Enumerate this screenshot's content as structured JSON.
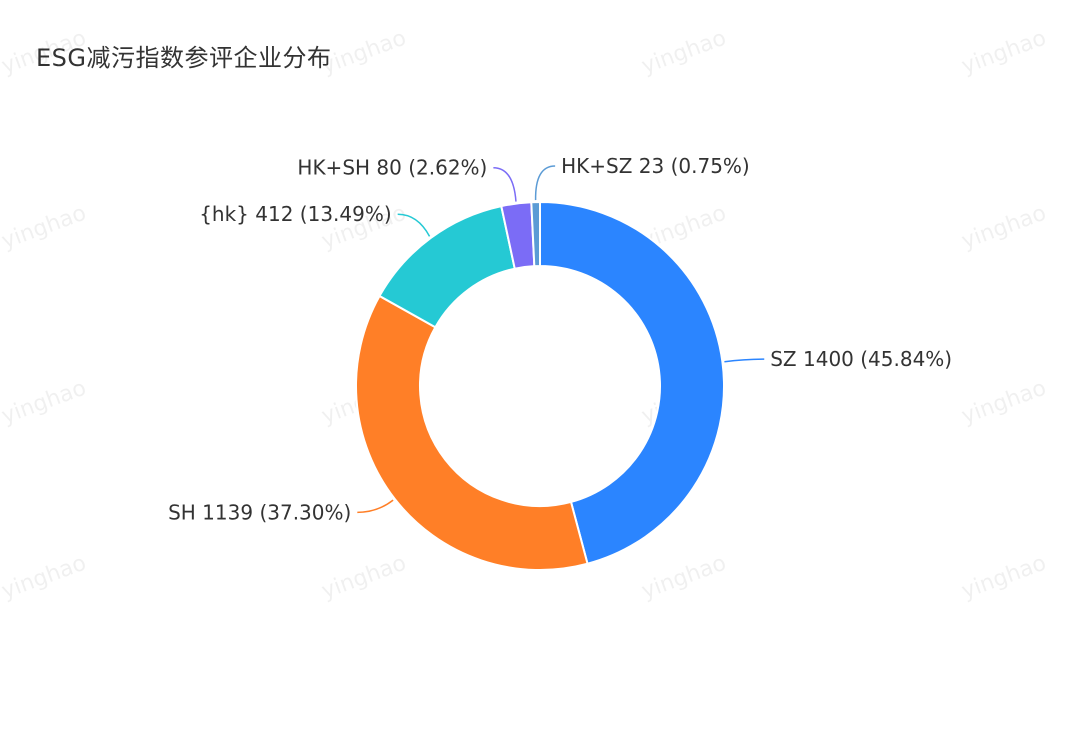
{
  "watermark_text": "yinghao",
  "chart_data": {
    "type": "pie",
    "variant": "donut",
    "title": "ESG减污指数参评企业分布",
    "slices": [
      {
        "name": "SZ",
        "value": 1400,
        "percent_label": "45.84%",
        "color": "#2b85ff"
      },
      {
        "name": "SH",
        "value": 1139,
        "percent_label": "37.30%",
        "color": "#ff7f27"
      },
      {
        "name": "{hk}",
        "value": 412,
        "percent_label": "13.49%",
        "color": "#25c9d4"
      },
      {
        "name": "HK+SH",
        "value": 80,
        "percent_label": "2.62%",
        "color": "#7b6cf6"
      },
      {
        "name": "HK+SZ",
        "value": 23,
        "percent_label": "0.75%",
        "color": "#5b9bd5"
      }
    ],
    "legend": "none",
    "start_angle": "12 o'clock",
    "direction": "clockwise"
  }
}
